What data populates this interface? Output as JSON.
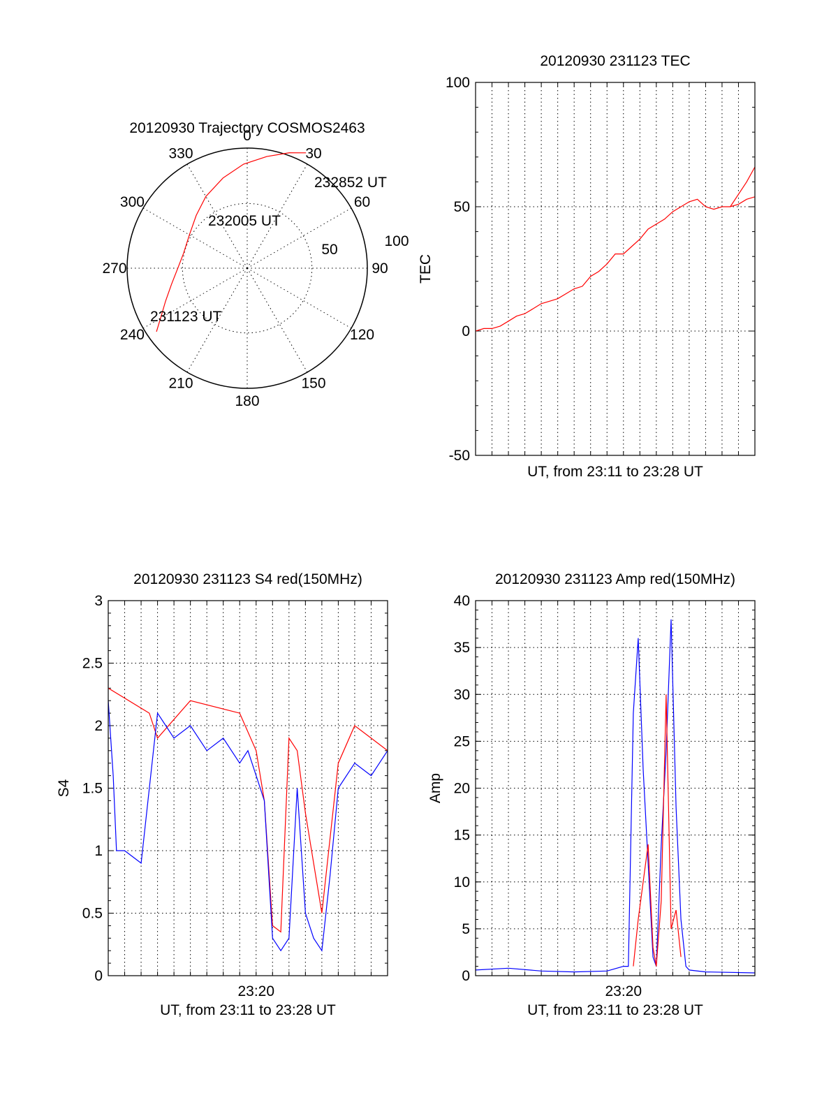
{
  "chart_data": [
    {
      "id": "trajectory",
      "type": "polar",
      "title": "20120930 Trajectory COSMOS2463",
      "azimuth_labels": [
        "0",
        "30",
        "60",
        "90",
        "120",
        "150",
        "180",
        "210",
        "240",
        "270",
        "300",
        "330"
      ],
      "azimuth_values": [
        0,
        30,
        60,
        90,
        120,
        150,
        180,
        210,
        240,
        270,
        300,
        330
      ],
      "radial_labels": [
        "50",
        "100"
      ],
      "radial_values": [
        50,
        100
      ],
      "grid": true,
      "series": [
        {
          "color": "#ff0000",
          "points": [
            {
              "az": 235,
              "r": 83
            },
            {
              "az": 240,
              "r": 75
            },
            {
              "az": 248,
              "r": 66
            },
            {
              "az": 258,
              "r": 58
            },
            {
              "az": 270,
              "r": 52
            },
            {
              "az": 283,
              "r": 49
            },
            {
              "az": 300,
              "r": 50
            },
            {
              "az": 316,
              "r": 55
            },
            {
              "az": 330,
              "r": 62
            },
            {
              "az": 345,
              "r": 70
            },
            {
              "az": 358,
              "r": 78
            },
            {
              "az": 10,
              "r": 85
            },
            {
              "az": 20,
              "r": 92
            },
            {
              "az": 27,
              "r": 97
            }
          ]
        }
      ],
      "annotations": [
        "232852 UT",
        "232005 UT",
        "231123 UT"
      ]
    },
    {
      "id": "tec",
      "type": "line",
      "title": "20120930 231123 TEC",
      "xlabel": "UT, from 23:11 to 23:28 UT",
      "ylabel": "TEC",
      "xlim": [
        0,
        17
      ],
      "ylim": [
        -50,
        100
      ],
      "yticks": [
        -50,
        0,
        50,
        100
      ],
      "x_grid_count": 17,
      "grid": true,
      "series": [
        {
          "color": "#ff0000",
          "x": [
            0,
            0.5,
            1,
            1.5,
            2,
            2.5,
            3,
            3.5,
            4,
            4.5,
            5,
            5.5,
            6,
            6.5,
            7,
            7.5,
            8,
            8.5,
            9,
            9.5,
            10,
            10.5,
            11,
            11.5,
            12,
            12.5,
            13,
            13.5,
            14,
            14.5,
            15,
            15.5,
            16,
            16.5,
            17
          ],
          "y": [
            0,
            1,
            1,
            2,
            4,
            6,
            7,
            9,
            11,
            12,
            13,
            15,
            17,
            18,
            22,
            24,
            27,
            31,
            31,
            34,
            37,
            41,
            43,
            45,
            48,
            50,
            52,
            53,
            50,
            49,
            50,
            50,
            51,
            53,
            54
          ]
        },
        {
          "color": "#ff0000",
          "x": [
            15.5,
            16,
            16.5,
            17
          ],
          "y": [
            50,
            55,
            60,
            66
          ]
        }
      ]
    },
    {
      "id": "s4",
      "type": "line",
      "title": "20120930 231123 S4 red(150MHz)",
      "xlabel": "UT, from 23:11 to 23:28 UT",
      "ylabel": "S4",
      "xlim": [
        0,
        17
      ],
      "ylim": [
        0,
        3
      ],
      "yticks": [
        "0",
        "0.5",
        "1",
        "1.5",
        "2",
        "2.5",
        "3"
      ],
      "ytick_values": [
        0,
        0.5,
        1,
        1.5,
        2,
        2.5,
        3
      ],
      "xticks": [
        {
          "value": 9,
          "label": "23:20"
        }
      ],
      "x_grid_count": 17,
      "grid": true,
      "series": [
        {
          "color": "#ff0000",
          "x": [
            0,
            2.5,
            3,
            5,
            8,
            9,
            9.5,
            10,
            10.5,
            11,
            11.5,
            12,
            12.5,
            13,
            14,
            15,
            16,
            17
          ],
          "y": [
            2.3,
            2.1,
            1.9,
            2.2,
            2.1,
            1.8,
            1.4,
            0.4,
            0.35,
            1.9,
            1.8,
            1.3,
            0.9,
            0.5,
            1.7,
            2.0,
            1.9,
            1.8
          ]
        },
        {
          "color": "#0000ff",
          "x": [
            0,
            0.3,
            0.5,
            1,
            2,
            3,
            3.5,
            4,
            5,
            6,
            7,
            8,
            8.5,
            9,
            9.5,
            10,
            10.5,
            11,
            11.5,
            12,
            12.5,
            13,
            13.5,
            14,
            15,
            16,
            17
          ],
          "y": [
            2.2,
            1.6,
            1.0,
            1.0,
            0.9,
            2.1,
            2.0,
            1.9,
            2.0,
            1.8,
            1.9,
            1.7,
            1.8,
            1.6,
            1.4,
            0.3,
            0.2,
            0.3,
            1.5,
            0.5,
            0.3,
            0.2,
            0.8,
            1.5,
            1.7,
            1.6,
            1.8
          ]
        }
      ]
    },
    {
      "id": "amp",
      "type": "line",
      "title": "20120930 231123 Amp red(150MHz)",
      "xlabel": "UT, from 23:11 to 23:28 UT",
      "ylabel": "Amp",
      "xlim": [
        0,
        17
      ],
      "ylim": [
        0,
        40
      ],
      "yticks": [
        0,
        5,
        10,
        15,
        20,
        25,
        30,
        35,
        40
      ],
      "xticks": [
        {
          "value": 9,
          "label": "23:20"
        }
      ],
      "x_grid_count": 17,
      "grid": true,
      "series": [
        {
          "color": "#0000ff",
          "x": [
            0,
            2,
            4,
            6,
            8,
            9,
            9.3,
            9.6,
            9.9,
            10.2,
            10.5,
            10.8,
            11,
            11.3,
            11.6,
            11.9,
            12.2,
            12.5,
            12.8,
            13,
            14,
            17
          ],
          "y": [
            0.6,
            0.8,
            0.5,
            0.4,
            0.5,
            1.0,
            1.0,
            28,
            36,
            22,
            12,
            2,
            1,
            14,
            24,
            38,
            18,
            6,
            1,
            0.6,
            0.4,
            0.3
          ]
        },
        {
          "color": "#ff0000",
          "x": [
            9.6,
            9.9,
            10.2,
            10.5,
            10.8,
            11,
            11.3,
            11.6,
            11.9,
            12.2,
            12.5
          ],
          "y": [
            1,
            6,
            10,
            14,
            3,
            1,
            8,
            30,
            5,
            7,
            2
          ]
        }
      ]
    }
  ]
}
